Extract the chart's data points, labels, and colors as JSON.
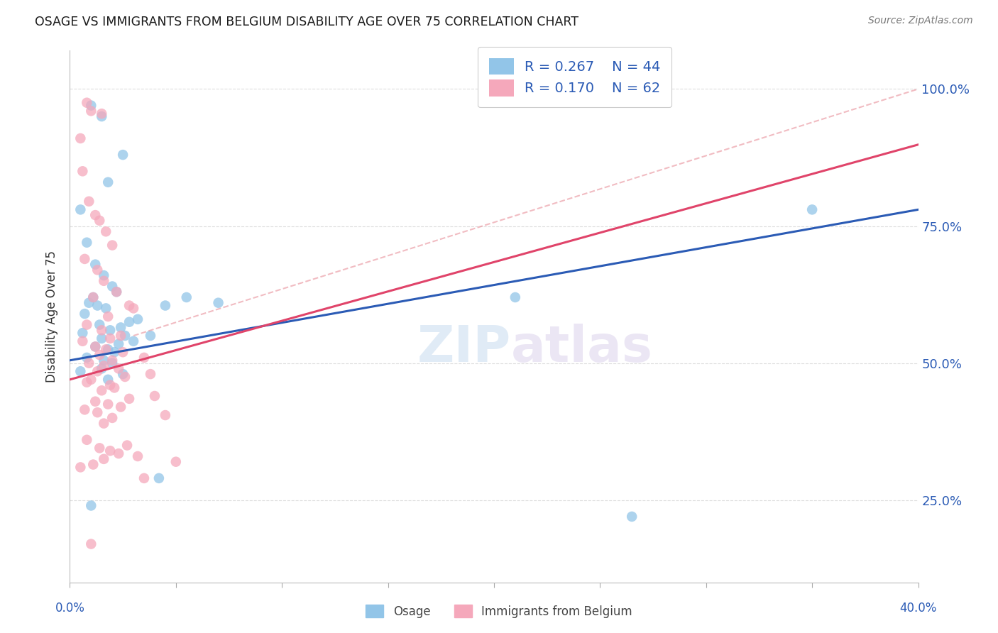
{
  "title": "OSAGE VS IMMIGRANTS FROM BELGIUM DISABILITY AGE OVER 75 CORRELATION CHART",
  "source": "Source: ZipAtlas.com",
  "ylabel": "Disability Age Over 75",
  "xlim": [
    0.0,
    40.0
  ],
  "ylim": [
    10.0,
    107.0
  ],
  "yticks": [
    25.0,
    50.0,
    75.0,
    100.0
  ],
  "ytick_labels": [
    "25.0%",
    "50.0%",
    "75.0%",
    "100.0%"
  ],
  "legend_r1": "0.267",
  "legend_n1": "44",
  "legend_r2": "0.170",
  "legend_n2": "62",
  "color_osage": "#92C5E8",
  "color_belgium": "#F5A8BB",
  "color_line_osage": "#2B5BB5",
  "color_line_belgium": "#E0446A",
  "color_dashed": "#E8909A",
  "color_title": "#1A1A1A",
  "color_source": "#777777",
  "color_axis_right": "#2B5BB5",
  "color_legend_text": "#2B5BB5",
  "background_color": "#FFFFFF",
  "grid_color": "#DDDDDD",
  "watermark_zip": "ZIP",
  "watermark_atlas": "atlas",
  "trend_blue_x0": 0.0,
  "trend_blue_y0": 50.5,
  "trend_blue_x1": 40.0,
  "trend_blue_y1": 78.0,
  "trend_pink_x0": 0.0,
  "trend_pink_y0": 47.0,
  "trend_pink_x1": 14.0,
  "trend_pink_y1": 62.0,
  "dashed_x0": 3.0,
  "dashed_y0": 55.0,
  "dashed_x1": 40.0,
  "dashed_y1": 100.0,
  "osage_x": [
    1.0,
    1.5,
    2.5,
    1.8,
    0.5,
    0.8,
    1.2,
    1.6,
    2.0,
    1.1,
    0.9,
    1.3,
    1.7,
    2.2,
    0.7,
    3.2,
    2.8,
    1.4,
    4.5,
    2.4,
    1.9,
    0.6,
    2.6,
    1.5,
    3.0,
    2.3,
    1.2,
    1.8,
    2.1,
    5.5,
    0.8,
    3.8,
    1.6,
    2.0,
    7.0,
    4.2,
    21.0,
    26.5,
    35.0,
    1.0,
    1.5,
    0.5,
    2.5,
    1.8
  ],
  "osage_y": [
    97.0,
    95.0,
    88.0,
    83.0,
    78.0,
    72.0,
    68.0,
    66.0,
    64.0,
    62.0,
    61.0,
    60.5,
    60.0,
    63.0,
    59.0,
    58.0,
    57.5,
    57.0,
    60.5,
    56.5,
    56.0,
    55.5,
    55.0,
    54.5,
    54.0,
    53.5,
    53.0,
    52.5,
    52.0,
    62.0,
    51.0,
    55.0,
    50.5,
    50.0,
    61.0,
    29.0,
    62.0,
    22.0,
    78.0,
    24.0,
    49.0,
    48.5,
    48.0,
    47.0
  ],
  "belgium_x": [
    0.8,
    1.0,
    1.5,
    0.5,
    0.6,
    0.9,
    1.2,
    1.4,
    1.7,
    2.0,
    0.7,
    1.3,
    1.6,
    2.2,
    1.1,
    2.8,
    3.0,
    1.8,
    0.8,
    1.5,
    2.4,
    1.9,
    0.6,
    1.2,
    1.7,
    2.5,
    1.4,
    3.5,
    2.0,
    0.9,
    1.6,
    2.3,
    1.3,
    3.8,
    2.6,
    1.0,
    0.8,
    1.9,
    2.1,
    1.5,
    4.0,
    2.8,
    1.2,
    1.8,
    2.4,
    0.7,
    1.3,
    4.5,
    2.0,
    1.6,
    0.8,
    2.7,
    1.4,
    1.9,
    2.3,
    3.2,
    1.6,
    5.0,
    1.1,
    0.5,
    3.5,
    1.0
  ],
  "belgium_y": [
    97.5,
    96.0,
    95.5,
    91.0,
    85.0,
    79.5,
    77.0,
    76.0,
    74.0,
    71.5,
    69.0,
    67.0,
    65.0,
    63.0,
    62.0,
    60.5,
    60.0,
    58.5,
    57.0,
    56.0,
    55.0,
    54.5,
    54.0,
    53.0,
    52.5,
    52.0,
    51.5,
    51.0,
    50.5,
    50.0,
    49.5,
    49.0,
    48.5,
    48.0,
    47.5,
    47.0,
    46.5,
    46.0,
    45.5,
    45.0,
    44.0,
    43.5,
    43.0,
    42.5,
    42.0,
    41.5,
    41.0,
    40.5,
    40.0,
    39.0,
    36.0,
    35.0,
    34.5,
    34.0,
    33.5,
    33.0,
    32.5,
    32.0,
    31.5,
    31.0,
    29.0,
    17.0
  ]
}
